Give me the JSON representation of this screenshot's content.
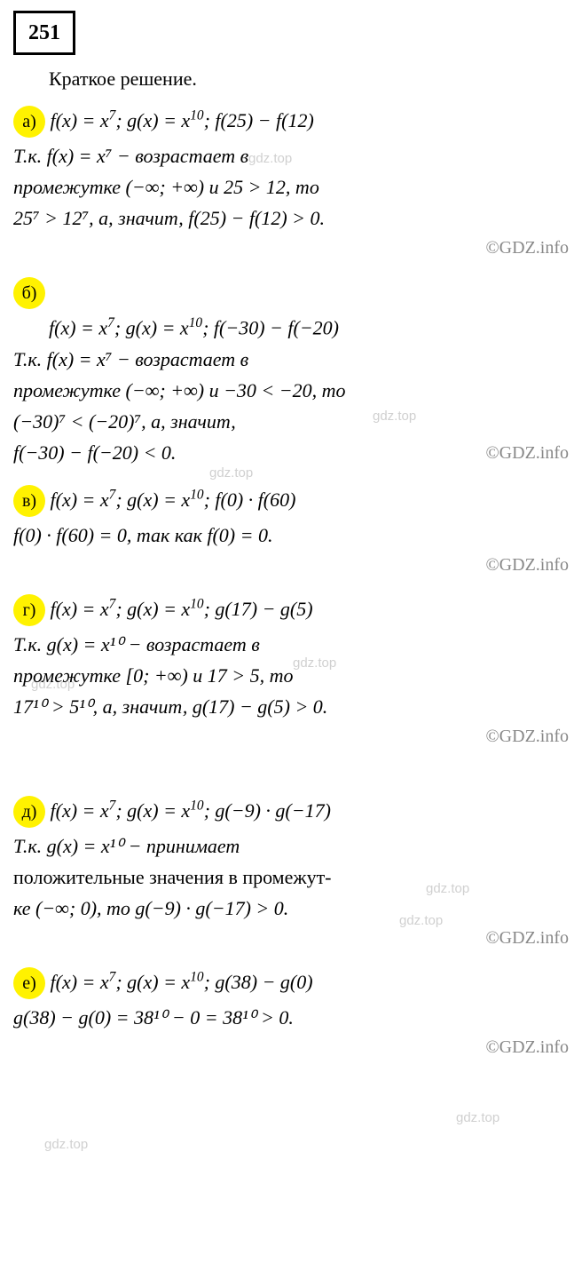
{
  "problem_number": "251",
  "intro": "Краткое решение.",
  "watermark_text": "gdz.top",
  "copyright_text": "©GDZ.info",
  "colors": {
    "highlight_bg": "#fff200",
    "text": "#000000",
    "copyright": "#888888",
    "watermark": "#d0d0d0",
    "background": "#ffffff"
  },
  "sections": {
    "a": {
      "label": "а)",
      "line1_pre": "f(x) = x",
      "line1_exp1": "7",
      "line1_mid": "; g(x) = x",
      "line1_exp2": "10",
      "line1_post": "; f(25) − f(12)",
      "line2": "Т.к.    f(x) = x⁷    −    возрастает    в",
      "line3": "промежутке  (−∞; +∞)  и  25 > 12,  то",
      "line4": "25⁷ > 12⁷, а, значит, f(25) − f(12) > 0."
    },
    "b": {
      "label": "б)",
      "line1_pre": "f(x) = x",
      "line1_exp1": "7",
      "line1_mid": "; g(x) = x",
      "line1_exp2": "10",
      "line1_post": "; f(−30) − f(−20)",
      "line2": "Т.к.    f(x) = x⁷    −    возрастает    в",
      "line3": "промежутке (−∞; +∞) и −30 < −20, то",
      "line4": "(−30)⁷ < (−20)⁷, а, значит,",
      "line5": "f(−30) − f(−20) < 0."
    },
    "v": {
      "label": "в)",
      "line1_pre": "f(x) = x",
      "line1_exp1": "7",
      "line1_mid": "; g(x) = x",
      "line1_exp2": "10",
      "line1_post": "; f(0) · f(60)",
      "line2": "f(0) · f(60) = 0, так как f(0) = 0."
    },
    "g": {
      "label": "г)",
      "line1_pre": "f(x) = x",
      "line1_exp1": "7",
      "line1_mid": "; g(x) = x",
      "line1_exp2": "10",
      "line1_post": "; g(17) − g(5)",
      "line2": "Т.к.    g(x) = x¹⁰    −    возрастает    в",
      "line3": "промежутке    [0; +∞)    и    17 > 5,    то",
      "line4": "17¹⁰ > 5¹⁰, а, значит, g(17) − g(5) > 0."
    },
    "d": {
      "label": "д)",
      "line1_pre": "f(x) = x",
      "line1_exp1": "7",
      "line1_mid": "; g(x) = x",
      "line1_exp2": "10",
      "line1_post": "; g(−9) · g(−17)",
      "line2": "Т.к.      g(x) = x¹⁰      −      принимает",
      "line3": "положительные значения в промежут-",
      "line4": "ке (−∞; 0), то g(−9) · g(−17) > 0."
    },
    "e": {
      "label": "е)",
      "line1_pre": "f(x) = x",
      "line1_exp1": "7",
      "line1_mid": "; g(x) = x",
      "line1_exp2": "10",
      "line1_post": "; g(38) − g(0)",
      "line2": "g(38) − g(0) = 38¹⁰ − 0 = 38¹⁰ > 0."
    }
  }
}
